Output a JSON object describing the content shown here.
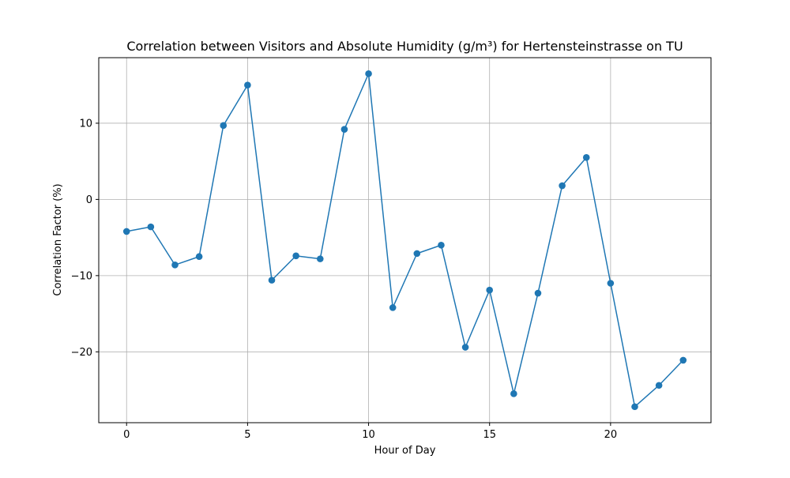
{
  "chart_data": {
    "type": "line",
    "title": "Correlation between Visitors and Absolute Humidity (g/m³) for Hertensteinstrasse on TU",
    "xlabel": "Hour of Day",
    "ylabel": "Correlation Factor (%)",
    "xlim": [
      -1.15,
      24.15
    ],
    "ylim": [
      -29.3,
      18.6
    ],
    "grid": true,
    "x_ticks": [
      0,
      5,
      10,
      15,
      20
    ],
    "y_ticks": [
      -20,
      -10,
      0,
      10
    ],
    "series": [
      {
        "color": "#1f77b4",
        "marker": "circle",
        "x": [
          0,
          1,
          2,
          3,
          4,
          5,
          6,
          7,
          8,
          9,
          10,
          11,
          12,
          13,
          14,
          15,
          16,
          17,
          18,
          19,
          20,
          21,
          22,
          23
        ],
        "y": [
          -4.2,
          -3.6,
          -8.6,
          -7.5,
          9.7,
          15.0,
          -10.6,
          -7.4,
          -7.8,
          9.2,
          16.5,
          -14.2,
          -7.1,
          -6.0,
          -19.4,
          -11.9,
          -25.5,
          -12.3,
          1.8,
          5.5,
          -11.0,
          -27.2,
          -24.4,
          -21.1
        ]
      }
    ]
  }
}
